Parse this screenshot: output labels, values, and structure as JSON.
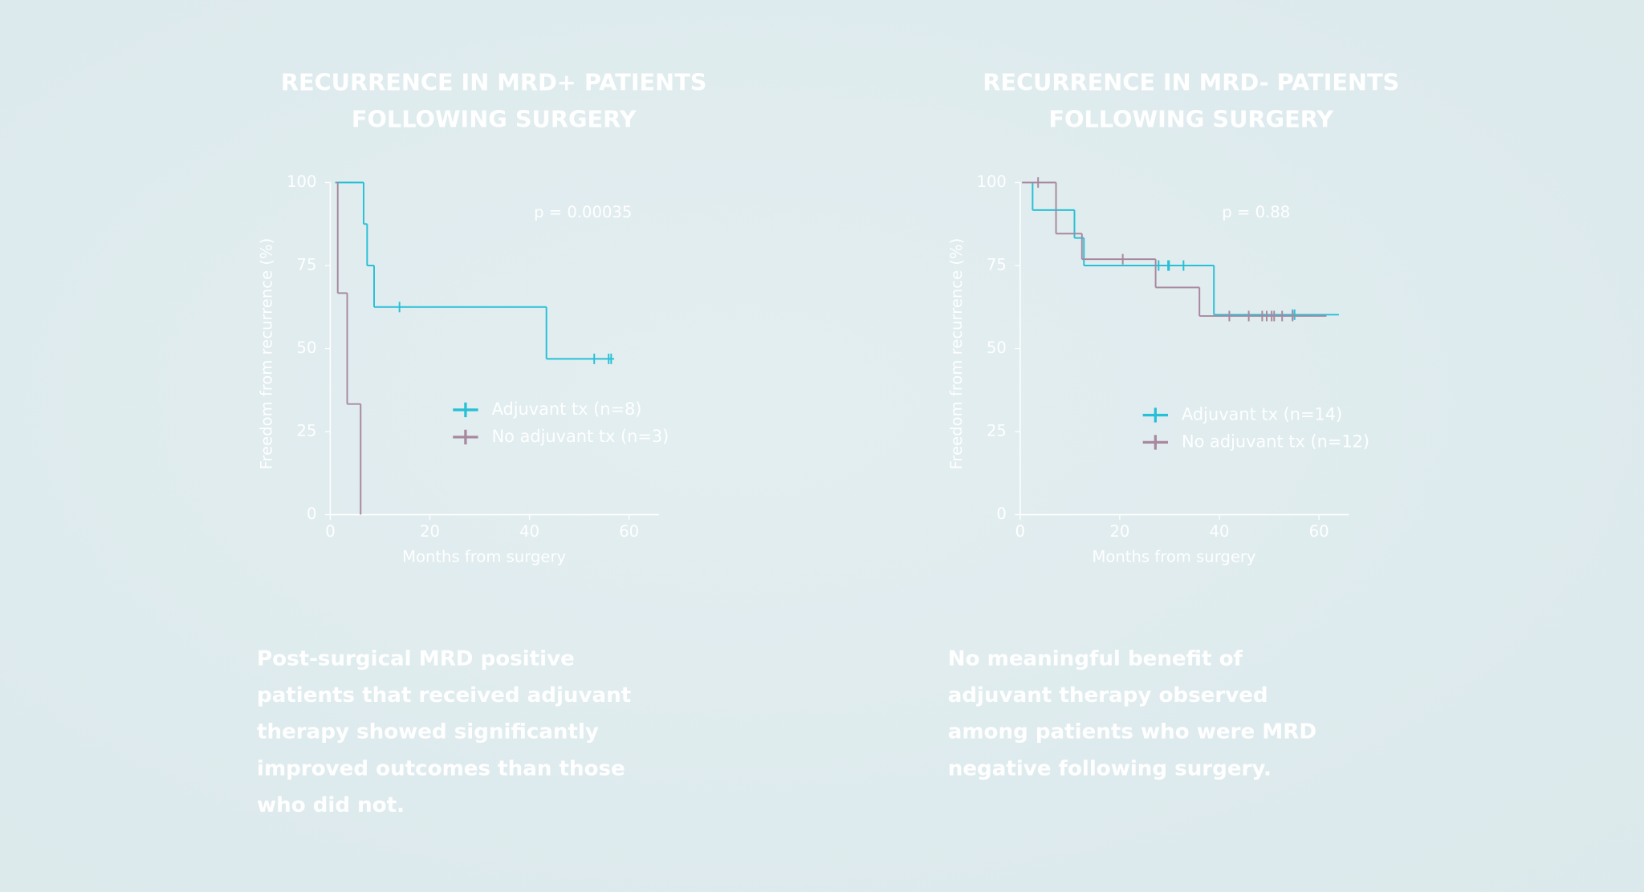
{
  "chart_data": [
    {
      "type": "kaplan-meier",
      "title": [
        "RECURRENCE IN MRD+ PATIENTS",
        "FOLLOWING SURGERY"
      ],
      "annotation": "p = 0.00035",
      "x_label": "Months from surgery",
      "y_label": "Freedom from recurrence (%)",
      "xlim": [
        0,
        66
      ],
      "xticks": [
        0,
        20,
        40,
        60
      ],
      "ylim": [
        0,
        100
      ],
      "yticks": [
        0,
        25,
        50,
        75,
        100
      ],
      "series": [
        {
          "name": "Adjuvant tx (n=8)",
          "color": "#27c0d6",
          "x": [
            1,
            6.7,
            7.4,
            8.8,
            43.4,
            57
          ],
          "values": [
            100,
            87.5,
            75,
            62.5,
            46.9,
            46.9
          ],
          "censored_x": [
            13.9,
            53,
            55.9,
            56.4
          ],
          "censored_values": [
            62.5,
            46.9,
            46.9,
            46.9
          ]
        },
        {
          "name": "No adjuvant tx (n=3)",
          "color": "#a8889f",
          "x": [
            1.2,
            1.5,
            3.4,
            6.1
          ],
          "values": [
            100,
            66.7,
            33.3,
            0
          ],
          "censored_x": [],
          "censored_values": []
        }
      ],
      "caption": [
        "Post-surgical MRD positive",
        "patients that received adjuvant",
        "therapy showed significantly",
        "improved outcomes than those",
        "who did not."
      ]
    },
    {
      "type": "kaplan-meier",
      "title": [
        "RECURRENCE IN MRD- PATIENTS",
        "FOLLOWING SURGERY"
      ],
      "annotation": "p = 0.88",
      "x_label": "Months from surgery",
      "y_label": "Freedom from recurrence (%)",
      "xlim": [
        0,
        66
      ],
      "xticks": [
        0,
        20,
        40,
        60
      ],
      "ylim": [
        0,
        100
      ],
      "yticks": [
        0,
        25,
        50,
        75,
        100
      ],
      "series": [
        {
          "name": "Adjuvant tx (n=14)",
          "color": "#27c0d6",
          "x": [
            0.4,
            2.5,
            10.9,
            12.8,
            38.9,
            64
          ],
          "values": [
            100,
            91.7,
            83.3,
            75,
            60.2,
            60.2
          ],
          "censored_x": [
            27.8,
            29.7,
            29.9,
            32.8,
            54.7,
            55.1
          ],
          "censored_values": [
            75,
            75,
            75,
            75,
            60.2,
            60.2
          ]
        },
        {
          "name": "No adjuvant tx (n=12)",
          "color": "#a8889f",
          "x": [
            0.4,
            7.2,
            12.4,
            27.2,
            36,
            61.5
          ],
          "values": [
            100,
            84.6,
            76.9,
            68.4,
            59.8,
            59.8
          ],
          "censored_x": [
            3.6,
            20.6,
            42,
            45.9,
            48.6,
            49.5,
            50.5,
            51,
            52.6,
            54.7
          ],
          "censored_values": [
            100,
            76.9,
            59.8,
            59.8,
            59.8,
            59.8,
            59.8,
            59.8,
            59.8,
            59.8
          ]
        }
      ],
      "caption": [
        "No meaningful benefit of",
        "adjuvant therapy observed",
        "among patients who were MRD",
        "negative following surgery."
      ]
    }
  ]
}
